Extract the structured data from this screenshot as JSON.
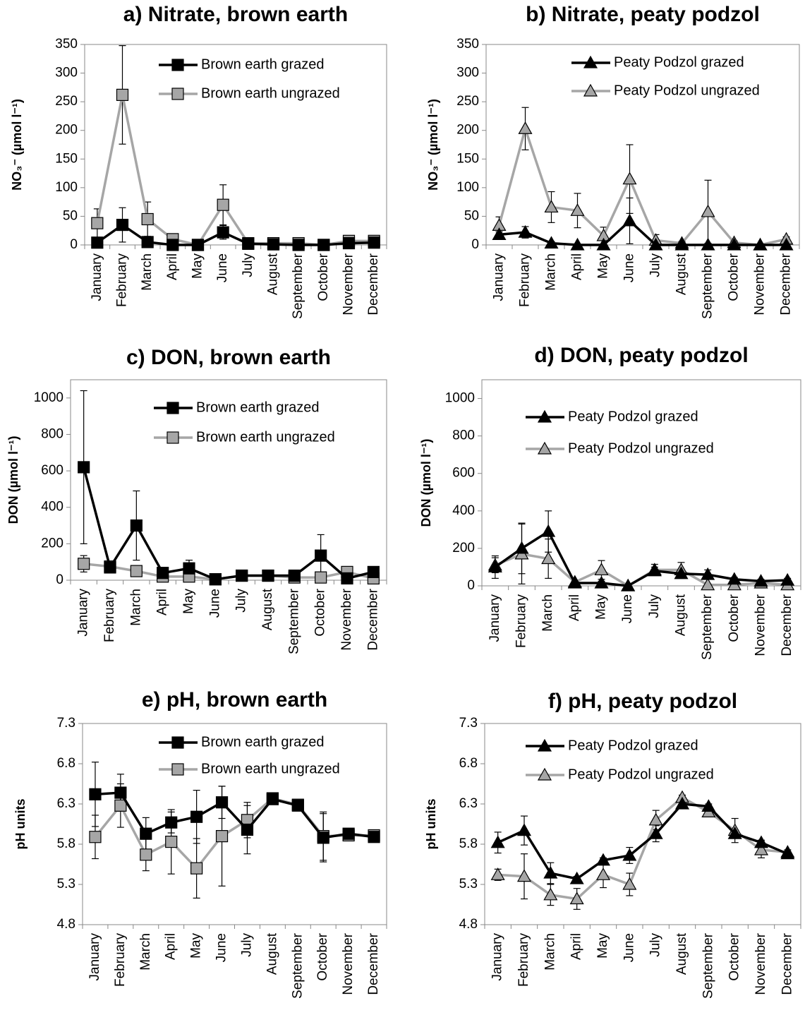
{
  "chart_data": [
    {
      "type": "line",
      "title": "a) Nitrate, brown earth",
      "ylabel": "NO₃⁻ (µmol l⁻¹)",
      "legend": "upper right",
      "categories": [
        "January",
        "February",
        "March",
        "April",
        "May",
        "June",
        "July",
        "August",
        "September",
        "October",
        "November",
        "December"
      ],
      "ylim": [
        0,
        350
      ],
      "yticks": [
        0,
        50,
        100,
        150,
        200,
        250,
        300,
        350
      ],
      "series": [
        {
          "name": "Brown earth grazed",
          "color": "#000000",
          "marker": "square",
          "values": [
            4,
            35,
            5,
            0,
            0,
            22,
            2,
            1,
            0,
            0,
            3,
            4
          ],
          "errors": [
            5,
            30,
            8,
            2,
            1,
            12,
            2,
            1,
            1,
            1,
            2,
            2
          ]
        },
        {
          "name": "Brown earth ungrazed",
          "color": "#a6a6a6",
          "marker": "square",
          "values": [
            38,
            262,
            45,
            10,
            0,
            70,
            3,
            3,
            3,
            0,
            7,
            7
          ],
          "errors": [
            25,
            86,
            30,
            5,
            1,
            35,
            3,
            2,
            2,
            1,
            3,
            3
          ]
        }
      ]
    },
    {
      "type": "line",
      "title": "b) Nitrate, peaty podzol",
      "ylabel": "NO₃⁻ (µmol l⁻¹)",
      "legend": "upper right",
      "categories": [
        "January",
        "February",
        "March",
        "April",
        "May",
        "June",
        "July",
        "August",
        "September",
        "October",
        "November",
        "December"
      ],
      "ylim": [
        0,
        350
      ],
      "yticks": [
        0,
        50,
        100,
        150,
        200,
        250,
        300,
        350
      ],
      "series": [
        {
          "name": "Peaty Podzol grazed",
          "color": "#000000",
          "marker": "triangle",
          "values": [
            18,
            22,
            3,
            0,
            0,
            42,
            0,
            0,
            0,
            0,
            0,
            0
          ],
          "errors": [
            5,
            10,
            3,
            1,
            1,
            40,
            1,
            1,
            1,
            1,
            1,
            1
          ]
        },
        {
          "name": "Peaty Podzol ungrazed",
          "color": "#a6a6a6",
          "marker": "triangle",
          "values": [
            34,
            203,
            66,
            60,
            16,
            115,
            8,
            3,
            58,
            4,
            0,
            10
          ],
          "errors": [
            15,
            37,
            27,
            30,
            15,
            60,
            10,
            3,
            55,
            3,
            1,
            4
          ]
        }
      ]
    },
    {
      "type": "line",
      "title": "c) DON, brown earth",
      "ylabel": "DON (µmol l⁻¹)",
      "legend": "upper right",
      "categories": [
        "January",
        "February",
        "March",
        "April",
        "May",
        "June",
        "July",
        "August",
        "September",
        "October",
        "November",
        "December"
      ],
      "ylim": [
        0,
        1100
      ],
      "yticks": [
        0,
        200,
        400,
        600,
        800,
        1000
      ],
      "series": [
        {
          "name": "Brown earth grazed",
          "color": "#000000",
          "marker": "square",
          "values": [
            620,
            70,
            300,
            40,
            65,
            5,
            25,
            25,
            25,
            135,
            10,
            45
          ],
          "errors": [
            420,
            30,
            190,
            15,
            45,
            5,
            10,
            10,
            10,
            115,
            10,
            15
          ]
        },
        {
          "name": "Brown earth ungrazed",
          "color": "#a6a6a6",
          "marker": "square",
          "values": [
            90,
            75,
            50,
            20,
            20,
            5,
            25,
            25,
            15,
            15,
            45,
            10
          ],
          "errors": [
            45,
            20,
            15,
            10,
            10,
            5,
            10,
            10,
            10,
            10,
            15,
            5
          ]
        }
      ]
    },
    {
      "type": "line",
      "title": "d) DON, peaty podzol",
      "ylabel": "DON (µmol l⁻¹)",
      "legend": "upper right",
      "categories": [
        "January",
        "February",
        "March",
        "April",
        "May",
        "June",
        "July",
        "August",
        "September",
        "October",
        "November",
        "December"
      ],
      "ylim": [
        0,
        1100
      ],
      "yticks": [
        0,
        200,
        400,
        600,
        800,
        1000
      ],
      "series": [
        {
          "name": "Peaty Podzol grazed",
          "color": "#000000",
          "marker": "triangle",
          "values": [
            100,
            200,
            290,
            15,
            15,
            0,
            80,
            65,
            60,
            35,
            25,
            30
          ],
          "errors": [
            60,
            135,
            110,
            10,
            10,
            5,
            20,
            20,
            25,
            10,
            10,
            10
          ]
        },
        {
          "name": "Peaty Podzol ungrazed",
          "color": "#a6a6a6",
          "marker": "triangle",
          "values": [
            110,
            170,
            145,
            20,
            85,
            0,
            85,
            85,
            5,
            5,
            15,
            5
          ],
          "errors": [
            40,
            160,
            105,
            10,
            50,
            5,
            30,
            40,
            5,
            5,
            5,
            5
          ]
        }
      ]
    },
    {
      "type": "line",
      "title": "e) pH, brown earth",
      "ylabel": "pH units",
      "legend": "upper right",
      "categories": [
        "January",
        "February",
        "March",
        "April",
        "May",
        "June",
        "July",
        "August",
        "September",
        "October",
        "November",
        "December"
      ],
      "ylim": [
        4.8,
        7.3
      ],
      "yticks": [
        4.8,
        5.3,
        5.8,
        6.3,
        6.8,
        7.3
      ],
      "series": [
        {
          "name": "Brown earth grazed",
          "color": "#000000",
          "marker": "square",
          "values": [
            6.42,
            6.44,
            5.93,
            6.07,
            6.14,
            6.32,
            5.98,
            6.36,
            6.28,
            5.88,
            5.93,
            5.89
          ],
          "errors": [
            0.4,
            0.23,
            0.2,
            0.13,
            0.33,
            0.2,
            0.3,
            0.03,
            0.03,
            0.3,
            0.03,
            0.03
          ]
        },
        {
          "name": "Brown earth ungrazed",
          "color": "#a6a6a6",
          "marker": "square",
          "values": [
            5.89,
            6.28,
            5.67,
            5.83,
            5.5,
            5.9,
            6.1,
            6.37,
            6.29,
            5.9,
            5.91,
            5.91
          ],
          "errors": [
            0.27,
            0.27,
            0.2,
            0.4,
            0.37,
            0.62,
            0.22,
            0.03,
            0.03,
            0.3,
            0.03,
            0.03
          ]
        }
      ]
    },
    {
      "type": "line",
      "title": "f) pH, peaty podzol",
      "ylabel": "pH units",
      "legend": "upper right",
      "categories": [
        "January",
        "February",
        "March",
        "April",
        "May",
        "June",
        "July",
        "August",
        "September",
        "October",
        "November",
        "December"
      ],
      "ylim": [
        4.8,
        7.3
      ],
      "yticks": [
        4.8,
        5.3,
        5.8,
        6.3,
        6.8,
        7.3
      ],
      "series": [
        {
          "name": "Peaty Podzol grazed",
          "color": "#000000",
          "marker": "triangle",
          "values": [
            5.82,
            5.97,
            5.44,
            5.37,
            5.6,
            5.66,
            5.93,
            6.3,
            6.27,
            5.93,
            5.82,
            5.68
          ],
          "errors": [
            0.13,
            0.18,
            0.13,
            0.03,
            0.03,
            0.1,
            0.1,
            0.03,
            0.03,
            0.05,
            0.03,
            0.03
          ]
        },
        {
          "name": "Peaty Podzol ungrazed",
          "color": "#a6a6a6",
          "marker": "triangle",
          "values": [
            5.42,
            5.4,
            5.17,
            5.12,
            5.42,
            5.3,
            6.1,
            6.38,
            6.2,
            5.97,
            5.73,
            5.7
          ],
          "errors": [
            0.07,
            0.28,
            0.13,
            0.13,
            0.16,
            0.14,
            0.12,
            0.03,
            0.03,
            0.15,
            0.1,
            0.03
          ]
        }
      ]
    }
  ]
}
